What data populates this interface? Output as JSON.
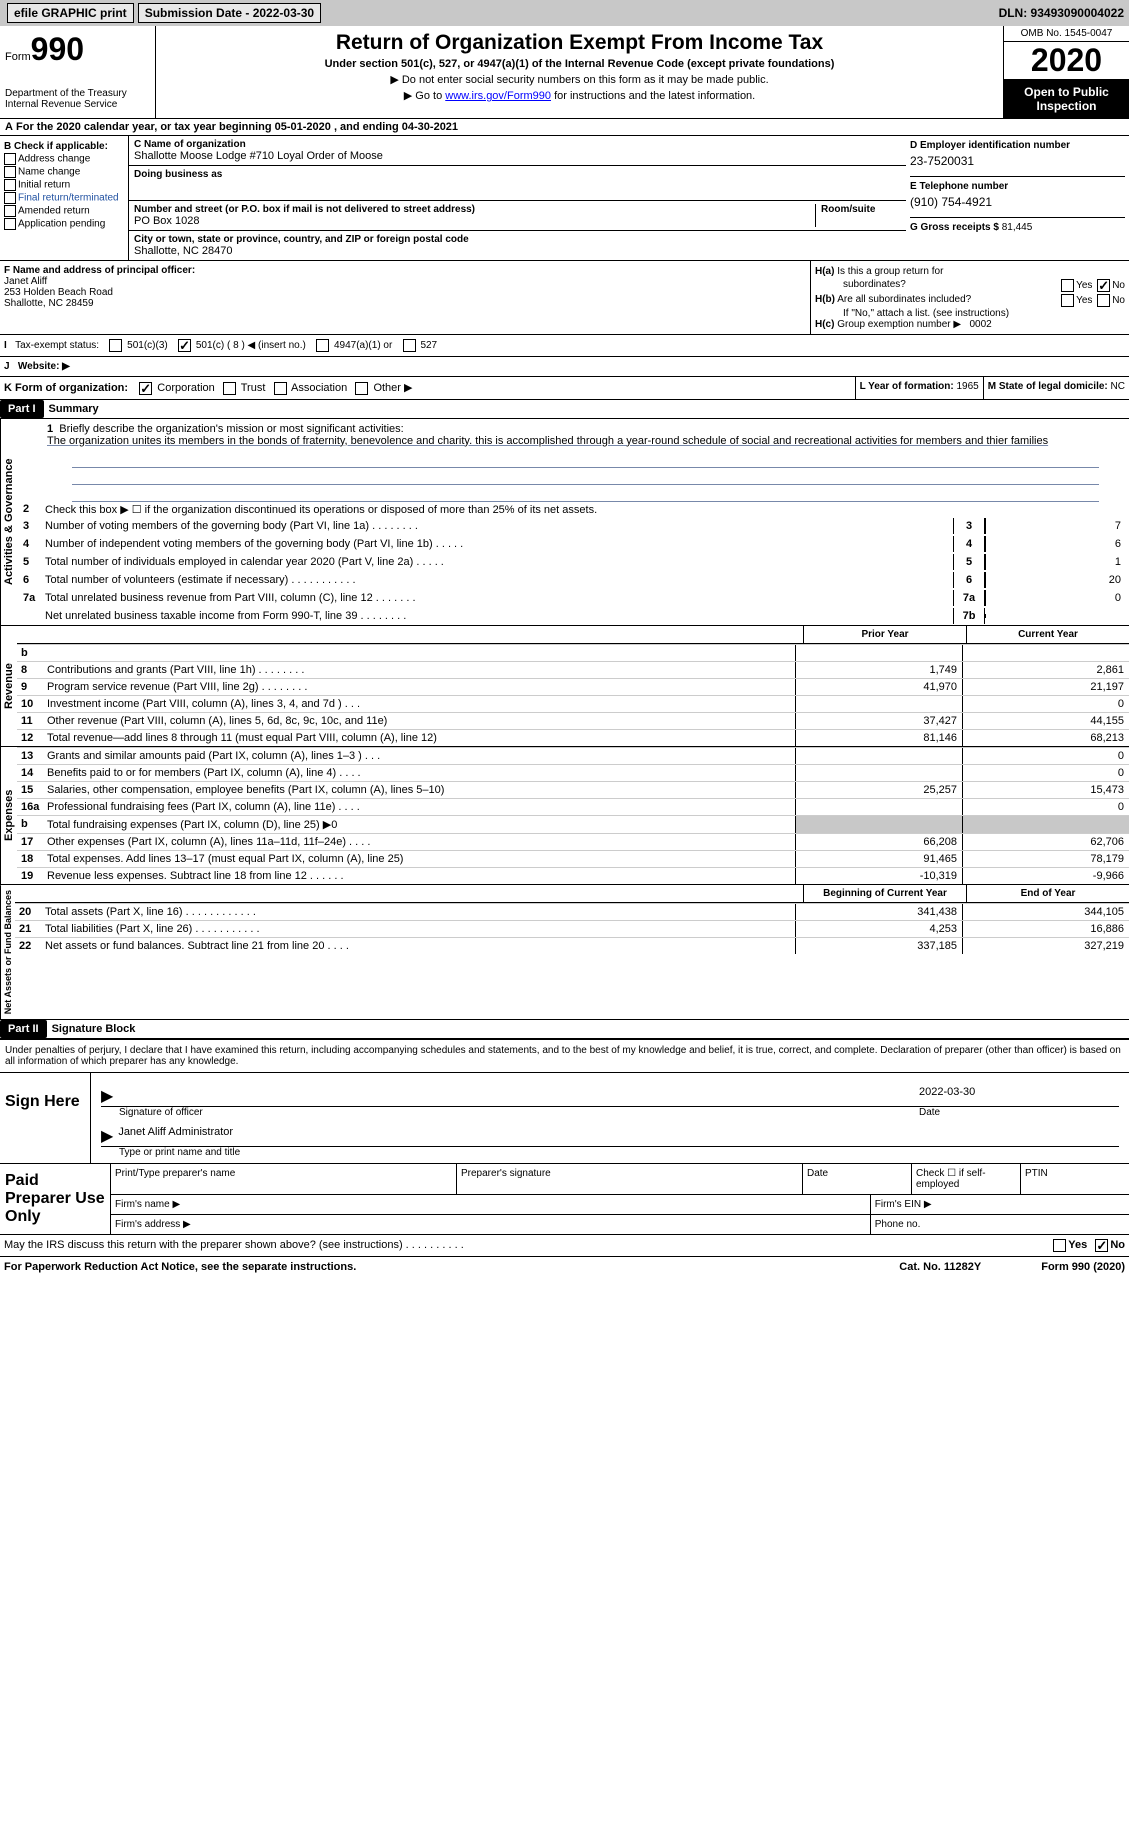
{
  "topbar": {
    "efile": "efile GRAPHIC print",
    "sub": "Submission Date - 2022-03-30",
    "dln": "DLN: 93493090004022"
  },
  "hdr": {
    "form": "Form",
    "num": "990",
    "dept": "Department of the Treasury\nInternal Revenue Service",
    "title": "Return of Organization Exempt From Income Tax",
    "sub": "Under section 501(c), 527, or 4947(a)(1) of the Internal Revenue Code (except private foundations)",
    "note1": "▶ Do not enter social security numbers on this form as it may be made public.",
    "note2a": "▶ Go to ",
    "note2link": "www.irs.gov/Form990",
    "note2b": " for instructions and the latest information.",
    "omb": "OMB No. 1545-0047",
    "year": "2020",
    "inspect": "Open to Public Inspection"
  },
  "period": "For the 2020 calendar year, or tax year beginning 05-01-2020   , and ending 04-30-2021",
  "B": {
    "hdr": "B Check if applicable:",
    "items": [
      "Address change",
      "Name change",
      "Initial return",
      "Final return/terminated",
      "Amended return",
      "Application pending"
    ]
  },
  "C": {
    "namelabel": "C Name of organization",
    "name": "Shallotte Moose Lodge #710 Loyal Order of Moose",
    "dba": "Doing business as",
    "addrlabel": "Number and street (or P.O. box if mail is not delivered to street address)",
    "addr": "PO Box 1028",
    "room": "Room/suite",
    "citylabel": "City or town, state or province, country, and ZIP or foreign postal code",
    "city": "Shallotte, NC  28470"
  },
  "D": {
    "label": "D Employer identification number",
    "val": "23-7520031"
  },
  "E": {
    "label": "E Telephone number",
    "val": "(910) 754-4921"
  },
  "G": {
    "label": "G Gross receipts $",
    "val": "81,445"
  },
  "F": {
    "label": "F  Name and address of principal officer:",
    "val": "Janet Aliff\n253 Holden Beach Road\nShallotte, NC  28459"
  },
  "H": {
    "a1": "H(a)",
    "a2": "Is this a group return for",
    "a3": "subordinates?",
    "ayes": "Yes",
    "ano": "No",
    "b1": "H(b)",
    "b2": "Are all subordinates included?",
    "bnote": "If \"No,\" attach a list. (see instructions)",
    "c1": "H(c)",
    "c2": "Group exemption number ▶",
    "cval": "0002"
  },
  "I": {
    "label": "Tax-exempt status:",
    "items": [
      "501(c)(3)",
      "501(c) ( 8 ) ◀ (insert no.)",
      "4947(a)(1) or",
      "527"
    ]
  },
  "J": {
    "label": "Website: ▶"
  },
  "K": {
    "label": "K Form of organization:",
    "items": [
      "Corporation",
      "Trust",
      "Association",
      "Other ▶"
    ]
  },
  "L": {
    "label": "L Year of formation:",
    "val": "1965"
  },
  "M": {
    "label": "M State of legal domicile:",
    "val": "NC"
  },
  "part1": {
    "hdr": "Part I",
    "title": "Summary"
  },
  "brief": {
    "num": "1",
    "label": "Briefly describe the organization's mission or most significant activities:",
    "text": "The organization unites its members in the bonds of fraternity, benevolence and charity. this is accomplished through a year-round schedule of social and recreational activities for members and thier families"
  },
  "gov": {
    "label": "Activities & Governance",
    "lines": [
      {
        "n": "2",
        "d": "Check this box ▶ ☐  if the organization discontinued its operations or disposed of more than 25% of its net assets."
      },
      {
        "n": "3",
        "d": "Number of voting members of the governing body (Part VI, line 1a)  .   .   .   .   .   .   .   .",
        "b": "3",
        "v": "7"
      },
      {
        "n": "4",
        "d": "Number of independent voting members of the governing body (Part VI, line 1b)  .   .   .   .   .",
        "b": "4",
        "v": "6"
      },
      {
        "n": "5",
        "d": "Total number of individuals employed in calendar year 2020 (Part V, line 2a)   .   .   .   .   .",
        "b": "5",
        "v": "1"
      },
      {
        "n": "6",
        "d": "Total number of volunteers (estimate if necessary)   .   .   .   .   .   .   .   .   .   .   .",
        "b": "6",
        "v": "20"
      },
      {
        "n": "7a",
        "d": "Total unrelated business revenue from Part VIII, column (C), line 12   .   .   .   .   .   .   .",
        "b": "7a",
        "v": "0"
      },
      {
        "n": "",
        "d": "Net unrelated business taxable income from Form 990-T, line 39  .   .   .   .   .   .   .   .",
        "b": "7b",
        "v": ""
      }
    ]
  },
  "colhdr": {
    "c1": "Prior Year",
    "c2": "Current Year"
  },
  "rev": {
    "label": "Revenue",
    "lines": [
      {
        "n": "b",
        "d": "",
        "c1": "",
        "c2": ""
      },
      {
        "n": "8",
        "d": "Contributions and grants (Part VIII, line 1h)   .   .   .   .   .   .   .   .",
        "c1": "1,749",
        "c2": "2,861"
      },
      {
        "n": "9",
        "d": "Program service revenue (Part VIII, line 2g)   .   .   .   .   .   .   .   .",
        "c1": "41,970",
        "c2": "21,197"
      },
      {
        "n": "10",
        "d": "Investment income (Part VIII, column (A), lines 3, 4, and 7d )   .   .   .",
        "c1": "",
        "c2": "0"
      },
      {
        "n": "11",
        "d": "Other revenue (Part VIII, column (A), lines 5, 6d, 8c, 9c, 10c, and 11e)",
        "c1": "37,427",
        "c2": "44,155"
      },
      {
        "n": "12",
        "d": "Total revenue—add lines 8 through 11 (must equal Part VIII, column (A), line 12)",
        "c1": "81,146",
        "c2": "68,213"
      }
    ]
  },
  "exp": {
    "label": "Expenses",
    "lines": [
      {
        "n": "13",
        "d": "Grants and similar amounts paid (Part IX, column (A), lines 1–3 )  .   .   .",
        "c1": "",
        "c2": "0"
      },
      {
        "n": "14",
        "d": "Benefits paid to or for members (Part IX, column (A), line 4)  .   .   .   .",
        "c1": "",
        "c2": "0"
      },
      {
        "n": "15",
        "d": "Salaries, other compensation, employee benefits (Part IX, column (A), lines 5–10)",
        "c1": "25,257",
        "c2": "15,473"
      },
      {
        "n": "16a",
        "d": "Professional fundraising fees (Part IX, column (A), line 11e)   .   .   .   .",
        "c1": "",
        "c2": "0"
      },
      {
        "n": "b",
        "d": "Total fundraising expenses (Part IX, column (D), line 25) ▶0",
        "c1": "gray",
        "c2": "gray"
      },
      {
        "n": "17",
        "d": "Other expenses (Part IX, column (A), lines 11a–11d, 11f–24e)   .   .   .   .",
        "c1": "66,208",
        "c2": "62,706"
      },
      {
        "n": "18",
        "d": "Total expenses. Add lines 13–17 (must equal Part IX, column (A), line 25)",
        "c1": "91,465",
        "c2": "78,179"
      },
      {
        "n": "19",
        "d": "Revenue less expenses. Subtract line 18 from line 12  .   .   .   .   .   .",
        "c1": "-10,319",
        "c2": "-9,966"
      }
    ]
  },
  "net": {
    "label": "Net Assets or Fund Balances",
    "hdr1": "Beginning of Current Year",
    "hdr2": "End of Year",
    "lines": [
      {
        "n": "20",
        "d": "Total assets (Part X, line 16)  .   .   .   .   .   .   .   .   .   .   .   .",
        "c1": "341,438",
        "c2": "344,105"
      },
      {
        "n": "21",
        "d": "Total liabilities (Part X, line 26)  .   .   .   .   .   .   .   .   .   .   .",
        "c1": "4,253",
        "c2": "16,886"
      },
      {
        "n": "22",
        "d": "Net assets or fund balances. Subtract line 21 from line 20  .   .   .   .",
        "c1": "337,185",
        "c2": "327,219"
      }
    ]
  },
  "part2": {
    "hdr": "Part II",
    "title": "Signature Block"
  },
  "penalty": "Under penalties of perjury, I declare that I have examined this return, including accompanying schedules and statements, and to the best of my knowledge and belief, it is true, correct, and complete. Declaration of preparer (other than officer) is based on all information of which preparer has any knowledge.",
  "sign": {
    "label": "Sign Here",
    "sigoff": "Signature of officer",
    "date": "2022-03-30",
    "datelabel": "Date",
    "name": "Janet Aliff  Administrator",
    "namelabel": "Type or print name and title"
  },
  "paid": {
    "label": "Paid Preparer Use Only",
    "r1": [
      "Print/Type preparer's name",
      "Preparer's signature",
      "Date",
      "Check ☐ if self-employed",
      "PTIN"
    ],
    "r2a": "Firm's name  ▶",
    "r2b": "Firm's EIN ▶",
    "r3a": "Firm's address ▶",
    "r3b": "Phone no."
  },
  "discuss": {
    "text": "May the IRS discuss this return with the preparer shown above? (see instructions)   .   .   .   .   .   .   .   .   .   .",
    "yes": "Yes",
    "no": "No"
  },
  "footer": {
    "pra": "For Paperwork Reduction Act Notice, see the separate instructions.",
    "cat": "Cat. No. 11282Y",
    "form": "Form 990 (2020)"
  }
}
